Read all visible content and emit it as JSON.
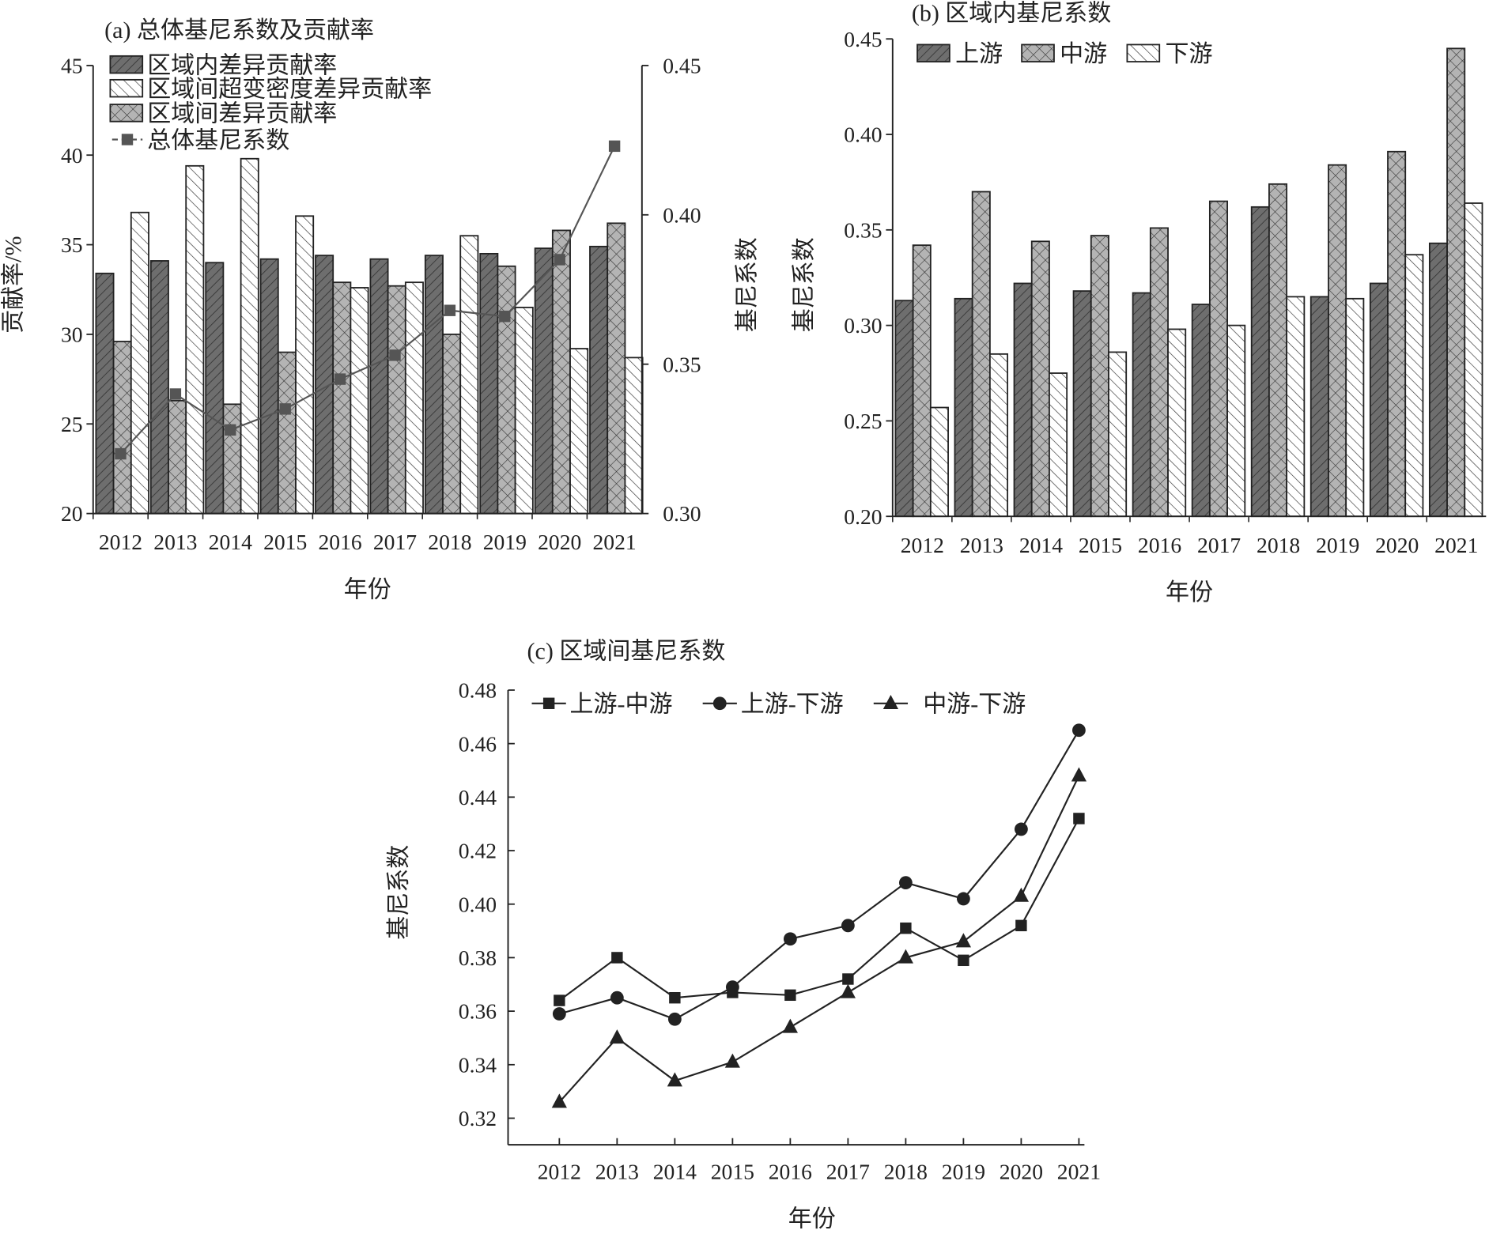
{
  "colors": {
    "dark": "#6e6e6e",
    "cross": "#b4b4b4",
    "white": "#ffffff",
    "line": "#555555",
    "ink": "#222222"
  },
  "chart_data": [
    {
      "type": "bar",
      "title": "(a) 总体基尼系数及贡献率",
      "xlabel": "年份",
      "ylabel": "贡献率/%",
      "y2label": "基尼系数",
      "categories": [
        "2012",
        "2013",
        "2014",
        "2015",
        "2016",
        "2017",
        "2018",
        "2019",
        "2020",
        "2021"
      ],
      "ylim": [
        20,
        45
      ],
      "yticks": [
        "20",
        "25",
        "30",
        "35",
        "40",
        "45"
      ],
      "y2lim": [
        0.3,
        0.45
      ],
      "y2ticks": [
        "0.30",
        "0.35",
        "0.40",
        "0.45"
      ],
      "legend_position": "top-left",
      "series": [
        {
          "name": "区域内差异贡献率",
          "pattern": "dark-backslash-hatch",
          "values": [
            33.4,
            34.1,
            34.0,
            34.2,
            34.4,
            34.2,
            34.4,
            34.5,
            34.8,
            34.9
          ]
        },
        {
          "name": "区域间超变密度差异贡献率",
          "pattern": "white-slash-hatch",
          "values": [
            36.8,
            39.4,
            39.8,
            36.6,
            32.6,
            32.9,
            35.5,
            31.5,
            29.2,
            28.7
          ]
        },
        {
          "name": "区域间差异贡献率",
          "pattern": "gray-crosshatch",
          "values": [
            29.6,
            26.3,
            26.1,
            29.0,
            32.9,
            32.7,
            30.0,
            33.8,
            35.8,
            36.2
          ]
        },
        {
          "name": "总体基尼系数",
          "type": "line",
          "axis": "right",
          "marker": "square",
          "values": [
            0.32,
            0.34,
            0.328,
            0.335,
            0.345,
            0.353,
            0.368,
            0.366,
            0.385,
            0.423
          ]
        }
      ],
      "grid": false
    },
    {
      "type": "bar",
      "title": "(b) 区域内基尼系数",
      "xlabel": "年份",
      "ylabel": "基尼系数",
      "categories": [
        "2012",
        "2013",
        "2014",
        "2015",
        "2016",
        "2017",
        "2018",
        "2019",
        "2020",
        "2021"
      ],
      "ylim": [
        0.2,
        0.45
      ],
      "yticks": [
        "0.20",
        "0.25",
        "0.30",
        "0.35",
        "0.40",
        "0.45"
      ],
      "legend_position": "top-left",
      "series": [
        {
          "name": "上游",
          "pattern": "dark-backslash-hatch",
          "values": [
            0.313,
            0.314,
            0.322,
            0.318,
            0.317,
            0.311,
            0.362,
            0.315,
            0.322,
            0.343
          ]
        },
        {
          "name": "中游",
          "pattern": "gray-crosshatch",
          "values": [
            0.342,
            0.37,
            0.344,
            0.347,
            0.351,
            0.365,
            0.374,
            0.384,
            0.391,
            0.445
          ]
        },
        {
          "name": "下游",
          "pattern": "white-slash-hatch",
          "values": [
            0.257,
            0.285,
            0.275,
            0.286,
            0.298,
            0.3,
            0.315,
            0.314,
            0.337,
            0.364
          ]
        }
      ],
      "grid": false
    },
    {
      "type": "line",
      "title": "(c) 区域间基尼系数",
      "xlabel": "年份",
      "ylabel": "基尼系数",
      "categories": [
        "2012",
        "2013",
        "2014",
        "2015",
        "2016",
        "2017",
        "2018",
        "2019",
        "2020",
        "2021"
      ],
      "ylim": [
        0.32,
        0.48
      ],
      "yticks": [
        "0.32",
        "0.34",
        "0.36",
        "0.38",
        "0.40",
        "0.42",
        "0.44",
        "0.46",
        "0.48"
      ],
      "legend_position": "top-left",
      "series": [
        {
          "name": "上游-中游",
          "marker": "square",
          "values": [
            0.364,
            0.38,
            0.365,
            0.367,
            0.366,
            0.372,
            0.391,
            0.379,
            0.392,
            0.432
          ]
        },
        {
          "name": "上游-下游",
          "marker": "circle",
          "values": [
            0.359,
            0.365,
            0.357,
            0.369,
            0.387,
            0.392,
            0.408,
            0.402,
            0.428,
            0.465
          ]
        },
        {
          "name": "中游-下游",
          "marker": "triangle",
          "values": [
            0.326,
            0.35,
            0.334,
            0.341,
            0.354,
            0.367,
            0.38,
            0.386,
            0.403,
            0.448
          ]
        }
      ],
      "grid": false
    }
  ]
}
